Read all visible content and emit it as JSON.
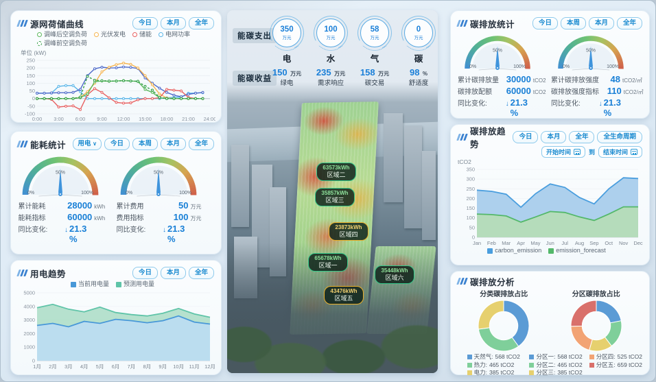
{
  "chart_data": [
    {
      "id": "source_grid",
      "type": "line",
      "title": "源网荷储曲线",
      "ylabel": "单位 (kW)",
      "ylim": [
        -100,
        250
      ],
      "ystep": 50,
      "x_domain": 24,
      "x_tick_pos": [
        0,
        3,
        6,
        9,
        12,
        15,
        18,
        21,
        24
      ],
      "x_tick_labels": [
        "0:00",
        "3:00",
        "6:00",
        "9:00",
        "12:00",
        "15:00",
        "18:00",
        "21:00",
        "24:00"
      ],
      "grid": true,
      "draw_order": [
        3,
        5,
        1,
        2,
        0,
        4
      ],
      "series": [
        {
          "name": "调峰后空调负荷",
          "color": "#5cb85c",
          "values": [
            0,
            0,
            0,
            0,
            0,
            0,
            5,
            30,
            110,
            115,
            113,
            115,
            117,
            115,
            112,
            60,
            40,
            5,
            0,
            0,
            0,
            0,
            0,
            0
          ]
        },
        {
          "name": "光伏发电",
          "color": "#f5b450",
          "values": [
            0,
            0,
            0,
            0,
            0,
            0,
            8,
            45,
            100,
            175,
            205,
            222,
            232,
            224,
            200,
            150,
            90,
            30,
            3,
            0,
            0,
            0,
            0,
            0
          ]
        },
        {
          "name": "储能",
          "color": "#e86060",
          "values": [
            0,
            0,
            -5,
            -55,
            -50,
            -48,
            -72,
            25,
            65,
            40,
            5,
            -25,
            -30,
            -28,
            -8,
            0,
            0,
            5,
            60,
            55,
            50,
            8,
            0,
            0
          ]
        },
        {
          "name": "电网功率",
          "color": "#58b5e8",
          "values": [
            35,
            35,
            36,
            80,
            85,
            85,
            45,
            0,
            0,
            0,
            0,
            0,
            0,
            0,
            0,
            0,
            0,
            0,
            5,
            8,
            10,
            35,
            36,
            38
          ]
        },
        {
          "name": "调峰前空调负荷",
          "color": "#2f9e44",
          "dash": true,
          "values": [
            0,
            0,
            0,
            0,
            0,
            0,
            10,
            145,
            120,
            117,
            115,
            114,
            117,
            115,
            113,
            80,
            55,
            8,
            0,
            0,
            0,
            0,
            0,
            0
          ]
        },
        {
          "name": "",
          "color": "#4d69c9",
          "values": [
            35,
            35,
            37,
            38,
            38,
            40,
            60,
            150,
            195,
            205,
            200,
            201,
            207,
            204,
            197,
            135,
            100,
            68,
            40,
            22,
            12,
            28,
            35,
            40
          ]
        }
      ]
    },
    {
      "id": "power_trend",
      "type": "area",
      "title": "用电趋势",
      "categories": [
        "1月",
        "2月",
        "3月",
        "4月",
        "5月",
        "6月",
        "7月",
        "8月",
        "9月",
        "10月",
        "11月",
        "12月"
      ],
      "ylim": [
        0,
        5000
      ],
      "ystep": 1000,
      "grid": true,
      "series": [
        {
          "name": "预测用电量",
          "color": "#5fc4a8",
          "fill": "rgba(160,216,190,0.75)",
          "values": [
            3900,
            4150,
            3800,
            3600,
            3950,
            3550,
            3400,
            3300,
            3500,
            3850,
            3450,
            3200
          ]
        },
        {
          "name": "当前用电量",
          "color": "#4898d8",
          "fill": "rgba(188,220,242,0.92)",
          "values": [
            2600,
            2750,
            2500,
            2900,
            2750,
            3050,
            2950,
            2800,
            2950,
            3300,
            2850,
            2700
          ]
        }
      ],
      "legend_order": [
        1,
        0
      ]
    },
    {
      "id": "carbon_trend",
      "type": "area",
      "title": "碳排放趋势",
      "ylabel": "tCO2",
      "categories": [
        "Jan",
        "Feb",
        "Mar",
        "Apr",
        "May",
        "Jun",
        "Jul",
        "Aug",
        "Sep",
        "Oct",
        "Nov",
        "Dec"
      ],
      "ylim": [
        0,
        350
      ],
      "ystep": 50,
      "grid": true,
      "series": [
        {
          "name": "carbon_emission",
          "color": "#4a9ede",
          "fill": "rgba(169,205,236,0.95)",
          "values": [
            243,
            237,
            222,
            155,
            225,
            275,
            257,
            205,
            172,
            250,
            307,
            303
          ]
        },
        {
          "name": "emission_forecast",
          "color": "#53b86a",
          "fill": "rgba(181,220,184,0.95)",
          "values": [
            120,
            117,
            110,
            78,
            105,
            133,
            128,
            105,
            87,
            120,
            157,
            157
          ]
        }
      ],
      "legend_order": [
        0,
        1
      ]
    },
    {
      "id": "category_donut",
      "type": "pie",
      "title": "分类碳排放占比",
      "labels": [
        "天然气",
        "热力",
        "电力"
      ],
      "values": [
        568,
        465,
        385
      ],
      "unit": "tCO2",
      "colors": [
        "#5b9bd5",
        "#7fcf9a",
        "#e6d06e"
      ]
    },
    {
      "id": "zone_donut",
      "type": "pie",
      "title": "分区碳排放占比",
      "labels": [
        "分区一",
        "分区二",
        "分区三",
        "分区四",
        "分区五"
      ],
      "values": [
        568,
        465,
        385,
        525,
        659
      ],
      "unit": "tCO2",
      "colors": [
        "#5b9bd5",
        "#7fcf9a",
        "#e6d06e",
        "#f2a374",
        "#d9706b"
      ]
    }
  ],
  "left": {
    "panel1": {
      "title": "源网荷储曲线",
      "buttons": [
        "今日",
        "本月",
        "全年"
      ]
    },
    "panel2": {
      "title": "能耗统计",
      "dropdown_label": "用电",
      "dropdown_caret": "∨",
      "buttons": [
        "今日",
        "本周",
        "本月",
        "全年"
      ],
      "left_stats": {
        "rows": [
          {
            "label": "累计能耗",
            "value": "28000",
            "unit": "kWh"
          },
          {
            "label": "能耗指标",
            "value": "60000",
            "unit": "kWh"
          }
        ],
        "yoy_label": "同比变化:",
        "yoy_arrow": "↓",
        "yoy_value": "21.3 %"
      },
      "right_stats": {
        "rows": [
          {
            "label": "累计费用",
            "value": "50",
            "unit": "万元"
          },
          {
            "label": "费用指标",
            "value": "100",
            "unit": "万元"
          }
        ],
        "yoy_label": "同比变化:",
        "yoy_arrow": "↓",
        "yoy_value": "21.3 %"
      }
    },
    "panel3": {
      "title": "用电趋势",
      "buttons": [
        "今日",
        "本月",
        "全年"
      ]
    }
  },
  "center": {
    "expense": {
      "label": "能碳支出",
      "items": [
        {
          "name": "电",
          "value": "350",
          "unit": "万元"
        },
        {
          "name": "水",
          "value": "100",
          "unit": "万元"
        },
        {
          "name": "气",
          "value": "58",
          "unit": "万元"
        },
        {
          "name": "碳",
          "value": "0",
          "unit": "万元"
        }
      ]
    },
    "income": {
      "label": "能碳收益",
      "items": [
        {
          "name": "绿电",
          "value": "150",
          "unit": "万元"
        },
        {
          "name": "需求响应",
          "value": "235",
          "unit": "万元"
        },
        {
          "name": "碳交易",
          "value": "158",
          "unit": "万元"
        },
        {
          "name": "舒适度",
          "value": "98",
          "unit": "%"
        }
      ]
    },
    "zones": [
      {
        "value": "63573kWh",
        "name": "区域二",
        "style": "green"
      },
      {
        "value": "35857kWh",
        "name": "区域三",
        "style": "green"
      },
      {
        "value": "23873kWh",
        "name": "区域四",
        "style": "yellow"
      },
      {
        "value": "65678kWh",
        "name": "区域一",
        "style": "green"
      },
      {
        "value": "35448kWh",
        "name": "区域六",
        "style": "green"
      },
      {
        "value": "43476kWh",
        "name": "区域五",
        "style": "yellow"
      }
    ]
  },
  "right": {
    "panel1": {
      "title": "碳排放统计",
      "buttons": [
        "今日",
        "本周",
        "本月",
        "全年"
      ],
      "left_stats": {
        "rows": [
          {
            "label": "累计碳排放量",
            "value": "30000",
            "unit": "tCO2"
          },
          {
            "label": "碳排放配额",
            "value": "60000",
            "unit": "tCO2"
          }
        ],
        "yoy_label": "同比变化:",
        "yoy_arrow": "↓",
        "yoy_value": "21.3 %"
      },
      "right_stats": {
        "rows": [
          {
            "label": "累计碳排放强度",
            "value": "48",
            "unit": "tCO2/㎡"
          },
          {
            "label": "碳排放强度指标",
            "value": "110",
            "unit": "tCO2/㎡"
          }
        ],
        "yoy_label": "同比变化:",
        "yoy_arrow": "↓",
        "yoy_value": "21.3 %"
      }
    },
    "panel2": {
      "title": "碳排放趋势",
      "buttons": [
        "今日",
        "本月",
        "全年",
        "全生命周期"
      ],
      "start_label": "开始时间",
      "to_label": "到",
      "end_label": "结束时间"
    },
    "panel3": {
      "title": "碳排放分析",
      "legend1": [
        {
          "label": "天然气:",
          "value": "568 tCO2"
        },
        {
          "label": "热力:",
          "value": "465 tCO2"
        },
        {
          "label": "电力:",
          "value": "385 tCO2"
        }
      ],
      "legend2": [
        {
          "label": "分区一:",
          "value": "568 tCO2"
        },
        {
          "label": "分区二:",
          "value": "465 tCO2"
        },
        {
          "label": "分区三:",
          "value": "385 tCO2"
        },
        {
          "label": "分区四:",
          "value": "525 tCO2"
        },
        {
          "label": "分区五:",
          "value": "659 tCO2"
        }
      ]
    }
  }
}
